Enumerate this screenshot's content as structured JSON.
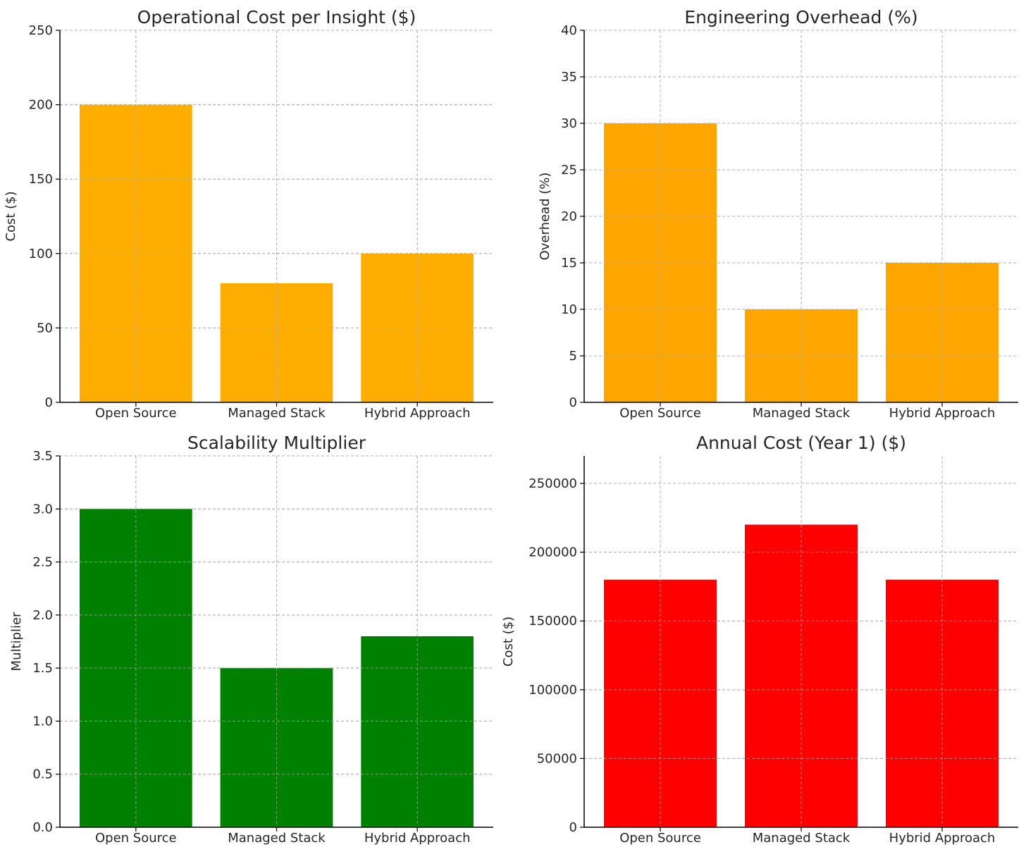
{
  "chart_data": [
    {
      "type": "bar",
      "title": "Operational Cost per Insight ($)",
      "xlabel": "",
      "ylabel": "Cost ($)",
      "categories": [
        "Open Source",
        "Managed Stack",
        "Hybrid Approach"
      ],
      "values": [
        200,
        80,
        100
      ],
      "ylim": [
        0,
        250
      ],
      "yticks": [
        "0",
        "50",
        "100",
        "150",
        "200",
        "250"
      ],
      "color": "#FFAE00",
      "grid": true
    },
    {
      "type": "bar",
      "title": "Engineering Overhead (%)",
      "xlabel": "",
      "ylabel": "Overhead (%)",
      "categories": [
        "Open Source",
        "Managed Stack",
        "Hybrid Approach"
      ],
      "values": [
        30,
        10,
        15
      ],
      "ylim": [
        0,
        40
      ],
      "yticks": [
        "0",
        "5",
        "10",
        "15",
        "20",
        "25",
        "30",
        "35",
        "40"
      ],
      "color": "#FFA500",
      "grid": true
    },
    {
      "type": "bar",
      "title": "Scalability Multiplier",
      "xlabel": "",
      "ylabel": "Multiplier",
      "categories": [
        "Open Source",
        "Managed Stack",
        "Hybrid Approach"
      ],
      "values": [
        3.0,
        1.5,
        1.8
      ],
      "ylim": [
        0,
        3.5
      ],
      "yticks": [
        "0.0",
        "0.5",
        "1.0",
        "1.5",
        "2.0",
        "2.5",
        "3.0",
        "3.5"
      ],
      "color": "#008000",
      "grid": true
    },
    {
      "type": "bar",
      "title": "Annual Cost (Year 1) ($)",
      "xlabel": "",
      "ylabel": "Cost ($)",
      "categories": [
        "Open Source",
        "Managed Stack",
        "Hybrid Approach"
      ],
      "values": [
        180000,
        220000,
        180000
      ],
      "ylim": [
        0,
        270000
      ],
      "yticks": [
        "0",
        "50000",
        "100000",
        "150000",
        "200000",
        "250000"
      ],
      "color": "#FF0000",
      "grid": true
    }
  ]
}
